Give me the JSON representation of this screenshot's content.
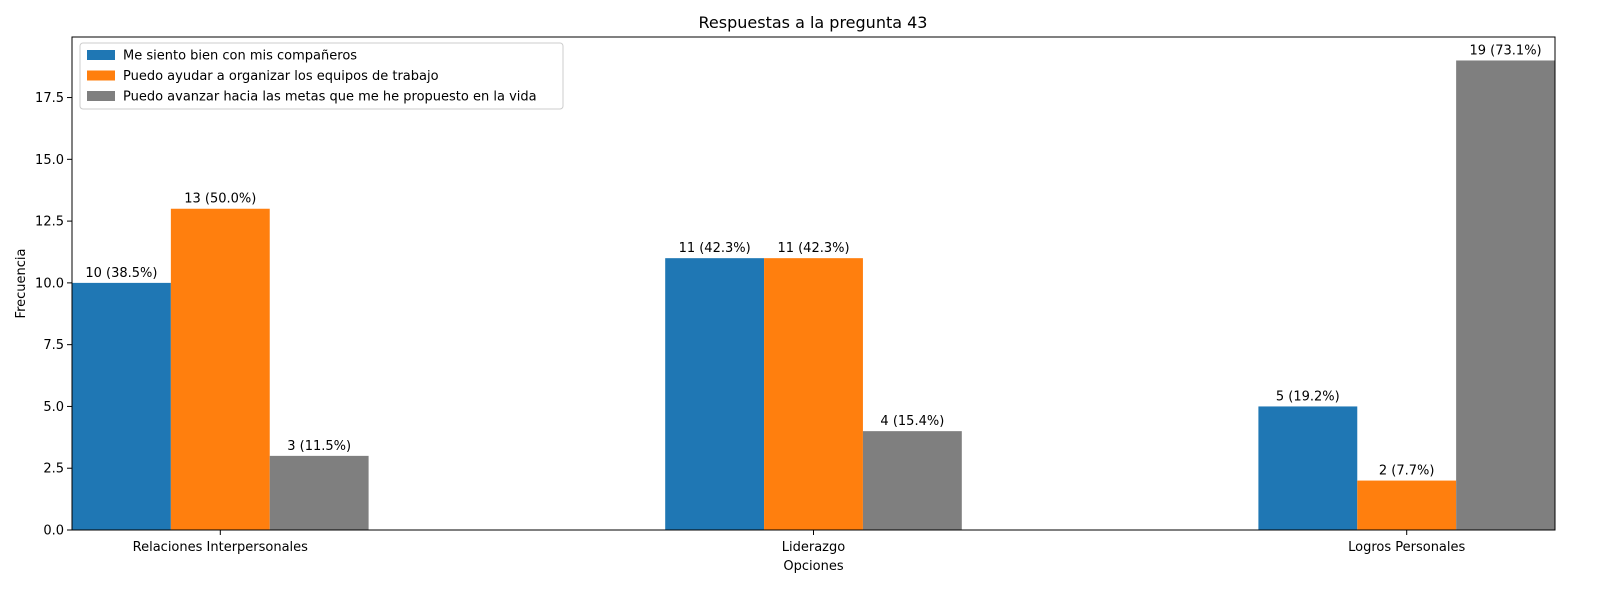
{
  "chart_data": {
    "type": "bar",
    "title": "Respuestas a la pregunta 43",
    "xlabel": "Opciones",
    "ylabel": "Frecuencia",
    "categories": [
      "Relaciones Interpersonales",
      "Liderazgo",
      "Logros Personales"
    ],
    "series": [
      {
        "name": "Me siento bien con mis compañeros",
        "color": "#1f77b4",
        "values": [
          10,
          11,
          5
        ],
        "labels": [
          "10 (38.5%)",
          "11 (42.3%)",
          "5 (19.2%)"
        ]
      },
      {
        "name": "Puedo ayudar a organizar los equipos de trabajo",
        "color": "#ff7f0e",
        "values": [
          13,
          11,
          2
        ],
        "labels": [
          "13 (50.0%)",
          "11 (42.3%)",
          "2 (7.7%)"
        ]
      },
      {
        "name": "Puedo avanzar hacia las metas que me he propuesto en la vida",
        "color": "#7f7f7f",
        "values": [
          3,
          4,
          19
        ],
        "labels": [
          "3 (11.5%)",
          "4 (15.4%)",
          "19 (73.1%)"
        ]
      }
    ],
    "ylim": [
      0,
      19.95
    ],
    "yticks": [
      0.0,
      2.5,
      5.0,
      7.5,
      10.0,
      12.5,
      15.0,
      17.5
    ],
    "ytick_labels": [
      "0.0",
      "2.5",
      "5.0",
      "7.5",
      "10.0",
      "12.5",
      "15.0",
      "17.5"
    ],
    "grid": false,
    "legend_position": "top-left"
  }
}
